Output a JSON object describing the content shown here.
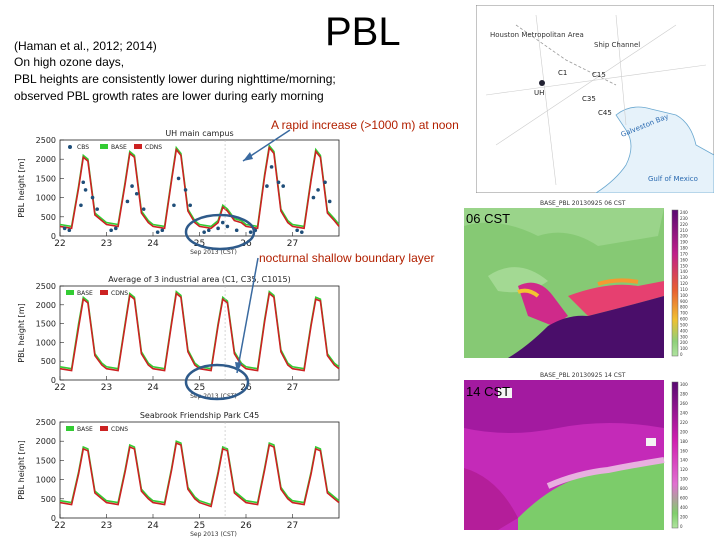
{
  "header": {
    "title": "PBL",
    "citation": "(Haman et al., 2012; 2014)",
    "desc_lines": [
      "On high ozone days,",
      "PBL heights are consistently lower during nighttime/morning;",
      "observed PBL growth rates are lower during early morning"
    ]
  },
  "annotations": {
    "rapid_increase": "A rapid increase (>1000 m) at noon",
    "nocturnal": "nocturnal shallow boundary layer"
  },
  "region_map": {
    "title": "Houston Metropolitan Area",
    "labels": [
      "Ship Channel",
      "UH",
      "C1",
      "C15",
      "C35",
      "C45",
      "Galveston Bay",
      "Gulf of Mexico"
    ]
  },
  "pbl_maps": [
    {
      "title": "BASE_PBL 20130925 06 CST",
      "time_label": "06 CST",
      "colorbar": [
        "2400",
        "2300",
        "2200",
        "2100",
        "2000",
        "1900",
        "1800",
        "1700",
        "1600",
        "1500",
        "1400",
        "1300",
        "1200",
        "1100",
        "1000",
        "900",
        "800",
        "700",
        "600",
        "500",
        "400",
        "300",
        "200",
        "100",
        "0"
      ]
    },
    {
      "title": "BASE_PBL 20130925 14 CST",
      "time_label": "14 CST",
      "colorbar": [
        "3000",
        "2800",
        "2600",
        "2400",
        "2200",
        "2000",
        "1800",
        "1600",
        "1400",
        "1200",
        "1000",
        "800",
        "600",
        "400",
        "200",
        "0"
      ]
    }
  ],
  "colors": {
    "CBS": "#1f4e79",
    "BASE": "#33cc33",
    "CDNS": "#cc2222",
    "annotation": "#b22000",
    "circle": "#2e5a8a"
  },
  "chart_data": [
    {
      "type": "line",
      "title": "UH main campus",
      "xlabel": "Sep 2013 (CST)",
      "ylabel": "PBL height [m]",
      "ylim": [
        0,
        2500
      ],
      "xlim": [
        22,
        28
      ],
      "xticks": [
        "22",
        "23",
        "24",
        "25",
        "26",
        "27"
      ],
      "yticks": [
        "0",
        "500",
        "1000",
        "1500",
        "2000",
        "2500"
      ],
      "legend": [
        "CBS",
        "BASE",
        "CDNS"
      ],
      "series": [
        {
          "name": "BASE",
          "x": [
            22.0,
            22.25,
            22.4,
            22.5,
            22.6,
            22.75,
            22.9,
            23.0,
            23.25,
            23.4,
            23.5,
            23.6,
            23.75,
            23.9,
            24.0,
            24.25,
            24.4,
            24.5,
            24.6,
            24.75,
            24.9,
            25.0,
            25.25,
            25.4,
            25.5,
            25.6,
            25.75,
            25.9,
            26.0,
            26.25,
            26.4,
            26.5,
            26.6,
            26.75,
            26.9,
            27.0,
            27.25,
            27.4,
            27.5,
            27.6,
            27.75,
            27.9,
            28.0
          ],
          "y": [
            300,
            250,
            1300,
            2100,
            2000,
            600,
            450,
            350,
            300,
            1400,
            2200,
            2100,
            650,
            400,
            300,
            250,
            1500,
            2300,
            2150,
            700,
            400,
            300,
            250,
            400,
            800,
            700,
            450,
            400,
            300,
            250,
            1600,
            2350,
            2200,
            700,
            400,
            300,
            250,
            1500,
            2250,
            2100,
            650,
            450,
            300
          ]
        },
        {
          "name": "CDNS",
          "x": [
            22.0,
            22.25,
            22.4,
            22.5,
            22.6,
            22.75,
            22.9,
            23.0,
            23.25,
            23.4,
            23.5,
            23.6,
            23.75,
            23.9,
            24.0,
            24.25,
            24.4,
            24.5,
            24.6,
            24.75,
            24.9,
            25.0,
            25.25,
            25.4,
            25.5,
            25.6,
            25.75,
            25.9,
            26.0,
            26.25,
            26.4,
            26.5,
            26.6,
            26.75,
            26.9,
            27.0,
            27.25,
            27.4,
            27.5,
            27.6,
            27.75,
            27.9,
            28.0
          ],
          "y": [
            250,
            200,
            1250,
            2050,
            1950,
            550,
            400,
            300,
            250,
            1350,
            2150,
            2050,
            600,
            350,
            250,
            200,
            1450,
            2250,
            2100,
            650,
            350,
            250,
            200,
            350,
            750,
            650,
            400,
            350,
            250,
            200,
            1550,
            2300,
            2150,
            650,
            350,
            250,
            200,
            1450,
            2200,
            2050,
            600,
            400,
            250
          ]
        },
        {
          "name": "CBS",
          "x": [
            22.1,
            22.2,
            22.45,
            22.5,
            22.55,
            22.7,
            22.8,
            23.1,
            23.2,
            23.45,
            23.55,
            23.65,
            23.8,
            24.1,
            24.2,
            24.45,
            24.55,
            24.7,
            24.8,
            25.1,
            25.2,
            25.4,
            25.5,
            25.6,
            25.8,
            26.1,
            26.2,
            26.45,
            26.55,
            26.7,
            26.8,
            27.1,
            27.2,
            27.45,
            27.55,
            27.7,
            27.8
          ],
          "y": [
            200,
            150,
            800,
            1400,
            1200,
            1000,
            700,
            150,
            200,
            900,
            1300,
            1100,
            700,
            100,
            150,
            800,
            1500,
            1200,
            800,
            100,
            150,
            200,
            350,
            250,
            150,
            100,
            150,
            1300,
            1800,
            1400,
            1300,
            150,
            100,
            1000,
            1200,
            1400,
            900
          ]
        }
      ]
    },
    {
      "type": "line",
      "title": "Average of 3 industrial area (C1, C35, C1015)",
      "xlabel": "Sep 2013 (CST)",
      "ylabel": "PBL height [m]",
      "ylim": [
        0,
        2500
      ],
      "xlim": [
        22,
        28
      ],
      "xticks": [
        "22",
        "23",
        "24",
        "25",
        "26",
        "27"
      ],
      "yticks": [
        "0",
        "500",
        "1000",
        "1500",
        "2000",
        "2500"
      ],
      "legend": [
        "BASE",
        "CDNS"
      ],
      "series": [
        {
          "name": "BASE",
          "x": [
            22.0,
            22.25,
            22.4,
            22.5,
            22.6,
            22.75,
            22.9,
            23.0,
            23.25,
            23.4,
            23.5,
            23.6,
            23.75,
            23.9,
            24.0,
            24.25,
            24.4,
            24.5,
            24.6,
            24.75,
            24.9,
            25.0,
            25.25,
            25.4,
            25.5,
            25.6,
            25.75,
            25.9,
            26.0,
            26.25,
            26.4,
            26.5,
            26.6,
            26.75,
            26.9,
            27.0,
            27.25,
            27.4,
            27.5,
            27.6,
            27.75,
            27.9,
            28.0
          ],
          "y": [
            350,
            300,
            1500,
            2200,
            2100,
            700,
            450,
            350,
            300,
            1500,
            2300,
            2200,
            750,
            450,
            350,
            300,
            1550,
            2350,
            2250,
            800,
            450,
            350,
            300,
            1500,
            2200,
            2100,
            750,
            450,
            350,
            300,
            1600,
            2350,
            2250,
            800,
            450,
            350,
            300,
            1500,
            2200,
            2150,
            700,
            450,
            350
          ]
        },
        {
          "name": "CDNS",
          "x": [
            22.0,
            22.25,
            22.4,
            22.5,
            22.6,
            22.75,
            22.9,
            23.0,
            23.25,
            23.4,
            23.5,
            23.6,
            23.75,
            23.9,
            24.0,
            24.25,
            24.4,
            24.5,
            24.6,
            24.75,
            24.9,
            25.0,
            25.25,
            25.4,
            25.5,
            25.6,
            25.75,
            25.9,
            26.0,
            26.25,
            26.4,
            26.5,
            26.6,
            26.75,
            26.9,
            27.0,
            27.25,
            27.4,
            27.5,
            27.6,
            27.75,
            27.9,
            28.0
          ],
          "y": [
            300,
            250,
            1400,
            2150,
            2050,
            650,
            400,
            300,
            250,
            1450,
            2250,
            2150,
            700,
            400,
            300,
            250,
            1500,
            2300,
            2200,
            750,
            400,
            300,
            250,
            1450,
            2150,
            2050,
            700,
            400,
            300,
            250,
            1550,
            2300,
            2200,
            750,
            400,
            300,
            250,
            1450,
            2150,
            2100,
            650,
            400,
            300
          ]
        }
      ]
    },
    {
      "type": "line",
      "title": "Seabrook Friendship Park C45",
      "xlabel": "Sep 2013 (CST)",
      "ylabel": "PBL height [m]",
      "ylim": [
        0,
        2500
      ],
      "xlim": [
        22,
        28
      ],
      "xticks": [
        "22",
        "23",
        "24",
        "25",
        "26",
        "27"
      ],
      "yticks": [
        "0",
        "500",
        "1000",
        "1500",
        "2000",
        "2500"
      ],
      "legend": [
        "BASE",
        "CDNS"
      ],
      "series": [
        {
          "name": "BASE",
          "x": [
            22.0,
            22.25,
            22.4,
            22.5,
            22.6,
            22.75,
            22.9,
            23.0,
            23.25,
            23.4,
            23.5,
            23.6,
            23.75,
            23.9,
            24.0,
            24.25,
            24.4,
            24.5,
            24.6,
            24.75,
            24.9,
            25.0,
            25.25,
            25.4,
            25.5,
            25.6,
            25.75,
            25.9,
            26.0,
            26.25,
            26.4,
            26.5,
            26.6,
            26.75,
            26.9,
            27.0,
            27.25,
            27.4,
            27.5,
            27.6,
            27.75,
            27.9,
            28.0
          ],
          "y": [
            450,
            400,
            1200,
            1850,
            1800,
            700,
            550,
            450,
            400,
            1250,
            1900,
            1850,
            750,
            550,
            450,
            400,
            1300,
            2000,
            1950,
            800,
            550,
            450,
            350,
            1200,
            1850,
            1800,
            700,
            550,
            450,
            400,
            1300,
            1950,
            1900,
            800,
            550,
            450,
            400,
            1200,
            1850,
            1800,
            700,
            550,
            450
          ]
        },
        {
          "name": "CDNS",
          "x": [
            22.0,
            22.25,
            22.4,
            22.5,
            22.6,
            22.75,
            22.9,
            23.0,
            23.25,
            23.4,
            23.5,
            23.6,
            23.75,
            23.9,
            24.0,
            24.25,
            24.4,
            24.5,
            24.6,
            24.75,
            24.9,
            25.0,
            25.25,
            25.4,
            25.5,
            25.6,
            25.75,
            25.9,
            26.0,
            26.25,
            26.4,
            26.5,
            26.6,
            26.75,
            26.9,
            27.0,
            27.25,
            27.4,
            27.5,
            27.6,
            27.75,
            27.9,
            28.0
          ],
          "y": [
            400,
            350,
            1150,
            1800,
            1750,
            650,
            500,
            400,
            350,
            1200,
            1850,
            1800,
            700,
            500,
            400,
            350,
            1250,
            1950,
            1900,
            750,
            500,
            400,
            300,
            1150,
            1800,
            1750,
            650,
            500,
            400,
            350,
            1250,
            1900,
            1850,
            750,
            500,
            400,
            350,
            1150,
            1800,
            1750,
            650,
            500,
            400
          ]
        }
      ]
    }
  ]
}
